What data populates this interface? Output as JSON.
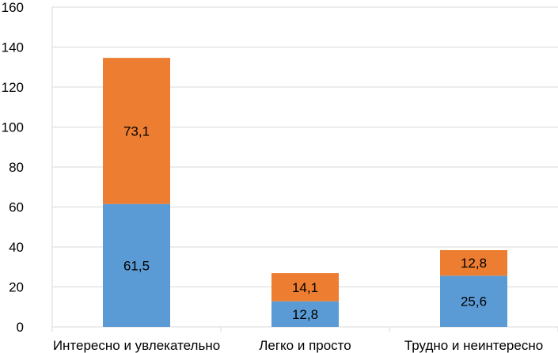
{
  "chart_data": {
    "type": "bar",
    "stacked": true,
    "categories": [
      "Интересно и увлекательно",
      "Легко и просто",
      "Трудно и неинтересно"
    ],
    "series": [
      {
        "values": [
          61.5,
          12.8,
          25.6
        ],
        "labels": [
          "61,5",
          "12,8",
          "25,6"
        ],
        "color": "#5b9bd5"
      },
      {
        "values": [
          73.1,
          14.1,
          12.8
        ],
        "labels": [
          "73,1",
          "14,1",
          "12,8"
        ],
        "color": "#ed7d31"
      }
    ],
    "yticks": [
      "0",
      "20",
      "40",
      "60",
      "80",
      "100",
      "120",
      "140",
      "160"
    ],
    "ylim": [
      0,
      160
    ],
    "grid": true,
    "legend": "none",
    "title": "",
    "xlabel": "",
    "ylabel": ""
  }
}
